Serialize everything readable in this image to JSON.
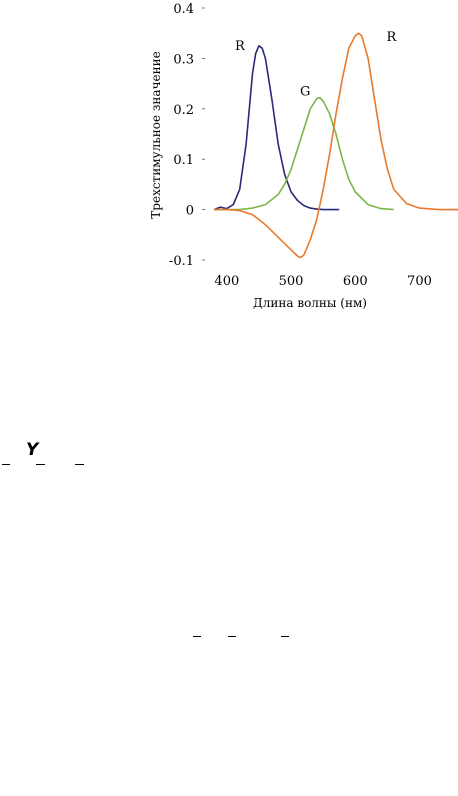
{
  "chart_data": {
    "type": "line",
    "xlabel": "Длина волны (нм)",
    "ylabel": "Трехстимульное значение",
    "xlim": [
      380,
      760
    ],
    "ylim": [
      -0.1,
      0.4
    ],
    "x_ticks": [
      400,
      500,
      600,
      700
    ],
    "y_ticks": [
      0.4,
      0.3,
      0.2,
      0.1,
      0,
      -0.1
    ],
    "y_tick_labels": [
      "0.4",
      "0.3",
      "0.2",
      "0.1",
      "0",
      "-0.1"
    ],
    "x_tick_labels": [
      "400",
      "500",
      "600",
      "700"
    ],
    "grid": false,
    "series": [
      {
        "name": "R",
        "color": "#2b2a7a",
        "x": [
          380,
          390,
          400,
          410,
          420,
          430,
          440,
          445,
          450,
          455,
          460,
          470,
          480,
          490,
          500,
          510,
          520,
          530,
          540,
          550,
          560,
          575
        ],
        "y": [
          0.0,
          0.005,
          0.002,
          0.01,
          0.04,
          0.13,
          0.27,
          0.31,
          0.325,
          0.32,
          0.3,
          0.22,
          0.13,
          0.07,
          0.035,
          0.018,
          0.008,
          0.003,
          0.001,
          0.0,
          0.0,
          0.0
        ]
      },
      {
        "name": "G",
        "color": "#7ab648",
        "x": [
          380,
          400,
          420,
          440,
          460,
          480,
          490,
          500,
          510,
          520,
          530,
          540,
          545,
          550,
          560,
          570,
          580,
          590,
          600,
          620,
          640,
          660
        ],
        "y": [
          0.0,
          0.0,
          0.0,
          0.003,
          0.01,
          0.03,
          0.05,
          0.08,
          0.12,
          0.16,
          0.2,
          0.22,
          0.222,
          0.215,
          0.19,
          0.15,
          0.1,
          0.06,
          0.035,
          0.01,
          0.002,
          0.0
        ]
      },
      {
        "name": "R",
        "color": "#e87a2c",
        "x": [
          380,
          400,
          420,
          440,
          460,
          480,
          500,
          510,
          515,
          520,
          530,
          540,
          550,
          560,
          570,
          580,
          590,
          600,
          605,
          610,
          620,
          630,
          640,
          650,
          660,
          680,
          700,
          730,
          760
        ],
        "y": [
          0.0,
          0.0,
          -0.002,
          -0.01,
          -0.03,
          -0.055,
          -0.08,
          -0.092,
          -0.095,
          -0.09,
          -0.06,
          -0.02,
          0.04,
          0.11,
          0.19,
          0.26,
          0.32,
          0.345,
          0.35,
          0.345,
          0.3,
          0.22,
          0.14,
          0.08,
          0.04,
          0.012,
          0.003,
          0.0,
          0.0
        ]
      }
    ]
  }
}
